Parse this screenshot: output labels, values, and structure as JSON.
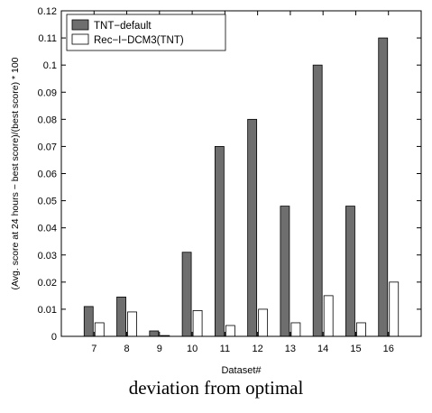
{
  "chart_data": {
    "type": "bar",
    "categories": [
      "7",
      "8",
      "9",
      "10",
      "11",
      "12",
      "13",
      "14",
      "15",
      "16"
    ],
    "series": [
      {
        "name": "TNT−default",
        "color": "#6e6e6e",
        "values": [
          0.011,
          0.0145,
          0.002,
          0.031,
          0.07,
          0.08,
          0.048,
          0.1,
          0.048,
          0.11
        ]
      },
      {
        "name": "Rec−I−DCM3(TNT)",
        "color": "#ffffff",
        "values": [
          0.005,
          0.009,
          0.0003,
          0.0095,
          0.004,
          0.01,
          0.005,
          0.015,
          0.005,
          0.02
        ]
      }
    ],
    "xlabel": "Dataset#",
    "ylabel": "(Avg. score at 24 hours − best score)/(best score) * 100",
    "ylim": [
      0,
      0.12
    ],
    "yticks": [
      0,
      0.01,
      0.02,
      0.03,
      0.04,
      0.05,
      0.06,
      0.07,
      0.08,
      0.09,
      0.1,
      0.11,
      0.12
    ],
    "legend_position": "top-left",
    "grid": false
  },
  "caption": "deviation from optimal"
}
